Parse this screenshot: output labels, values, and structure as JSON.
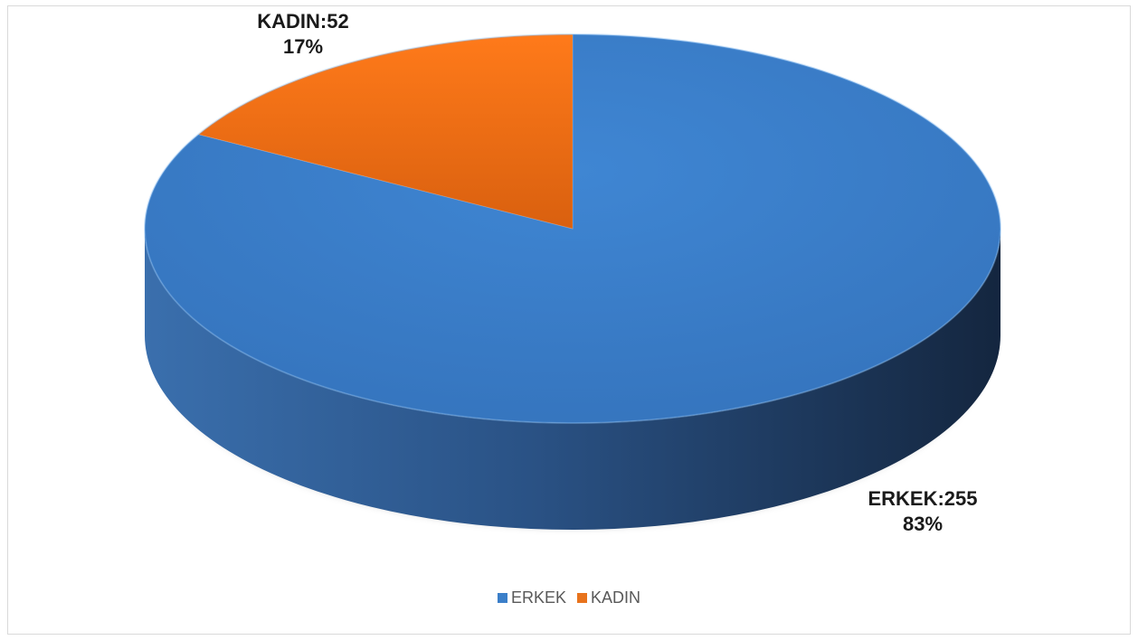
{
  "chart_data": {
    "type": "pie",
    "categories": [
      "ERKEK",
      "KADIN"
    ],
    "values": [
      255,
      52
    ],
    "percents": [
      "83%",
      "17%"
    ],
    "data_labels": [
      {
        "name": "ERKEK:255",
        "percent": "83%"
      },
      {
        "name": "KADIN:52",
        "percent": "17%"
      }
    ],
    "colors": [
      "#3b7fc9",
      "#e8731c"
    ],
    "legend": [
      "ERKEK",
      "KADIN"
    ],
    "legend_position": "bottom",
    "style": "3d"
  }
}
